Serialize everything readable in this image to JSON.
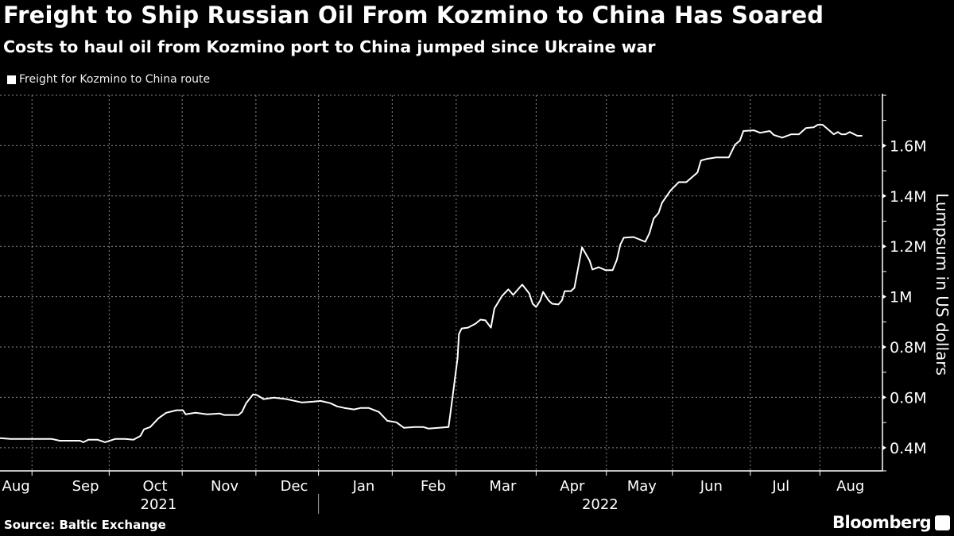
{
  "header": {
    "title": "Freight to Ship Russian Oil From Kozmino to China Has Soared",
    "subtitle": "Costs to haul oil from Kozmino port to China jumped since Ukraine war"
  },
  "footer": {
    "source": "Source: Baltic Exchange",
    "brand": "Bloomberg"
  },
  "colors": {
    "background": "#000000",
    "line": "#ffffff",
    "grid": "#8a8a8a"
  },
  "chart_data": {
    "type": "line",
    "title": "Freight to Ship Russian Oil From Kozmino to China Has Soared",
    "ylabel": "Lumpsum in US dollars",
    "xlabel": "",
    "x_unit": "months since Aug 1, 2021",
    "xlim": [
      0.27,
      12.96
    ],
    "ylim": [
      0.308,
      1.8
    ],
    "y_unit": "million USD",
    "yticks": [
      0.4,
      0.6,
      0.8,
      1.0,
      1.2,
      1.4,
      1.6
    ],
    "ytick_labels": [
      "0.4M",
      "0.6M",
      "0.8M",
      "1M",
      "1.2M",
      "1.4M",
      "1.6M"
    ],
    "yminor": [
      0.5,
      0.7,
      0.9,
      1.1,
      1.3,
      1.5,
      1.7,
      1.8
    ],
    "xgrid": [
      0.73,
      1.84,
      2.89,
      3.95,
      4.85,
      5.91,
      6.83,
      7.98,
      8.99,
      9.94,
      11.06,
      12.06
    ],
    "month_ticks": [
      {
        "x": 0.5,
        "label": "Aug"
      },
      {
        "x": 1.5,
        "label": "Sep"
      },
      {
        "x": 2.5,
        "label": "Oct"
      },
      {
        "x": 3.5,
        "label": "Nov"
      },
      {
        "x": 4.5,
        "label": "Dec"
      },
      {
        "x": 5.5,
        "label": "Jan"
      },
      {
        "x": 6.5,
        "label": "Feb"
      },
      {
        "x": 7.5,
        "label": "Mar"
      },
      {
        "x": 8.5,
        "label": "Apr"
      },
      {
        "x": 9.5,
        "label": "May"
      },
      {
        "x": 10.5,
        "label": "Jun"
      },
      {
        "x": 11.5,
        "label": "Jul"
      },
      {
        "x": 12.5,
        "label": "Aug"
      }
    ],
    "year_labels": [
      {
        "x": 2.55,
        "label": "2021"
      },
      {
        "x": 8.9,
        "label": "2022"
      }
    ],
    "year_divider": 4.85,
    "grid": true,
    "legend_position": "top-left",
    "series": [
      {
        "name": "Freight for Kozmino to China route",
        "x": [
          0.27,
          0.42,
          1.01,
          1.13,
          1.42,
          1.47,
          1.54,
          1.67,
          1.78,
          1.93,
          2.07,
          2.19,
          2.29,
          2.34,
          2.43,
          2.55,
          2.66,
          2.81,
          2.9,
          2.94,
          3.08,
          3.25,
          3.43,
          3.49,
          3.7,
          3.75,
          3.81,
          3.91,
          3.97,
          4.06,
          4.21,
          4.39,
          4.61,
          4.78,
          4.88,
          5.02,
          5.12,
          5.22,
          5.36,
          5.46,
          5.57,
          5.72,
          5.84,
          5.97,
          6.08,
          6.23,
          6.36,
          6.43,
          6.72,
          6.75,
          6.85,
          6.87,
          6.91,
          7.0,
          7.11,
          7.18,
          7.25,
          7.33,
          7.38,
          7.49,
          7.58,
          7.65,
          7.78,
          7.88,
          7.93,
          7.98,
          8.04,
          8.08,
          8.16,
          8.21,
          8.3,
          8.35,
          8.39,
          8.48,
          8.53,
          8.64,
          8.75,
          8.79,
          8.88,
          8.98,
          9.08,
          9.14,
          9.19,
          9.24,
          9.38,
          9.55,
          9.61,
          9.67,
          9.74,
          9.79,
          9.91,
          10.03,
          10.14,
          10.3,
          10.35,
          10.43,
          10.57,
          10.75,
          10.84,
          10.91,
          10.96,
          11.11,
          11.2,
          11.34,
          11.4,
          11.52,
          11.65,
          11.76,
          11.86,
          11.97,
          12.03,
          12.1,
          12.26,
          12.32,
          12.37,
          12.43,
          12.49,
          12.6,
          12.67
        ],
        "values": [
          0.438,
          0.435,
          0.435,
          0.428,
          0.428,
          0.422,
          0.432,
          0.432,
          0.422,
          0.435,
          0.435,
          0.432,
          0.447,
          0.473,
          0.482,
          0.517,
          0.539,
          0.549,
          0.549,
          0.533,
          0.539,
          0.533,
          0.536,
          0.53,
          0.53,
          0.542,
          0.577,
          0.612,
          0.609,
          0.593,
          0.599,
          0.593,
          0.58,
          0.583,
          0.586,
          0.577,
          0.564,
          0.558,
          0.552,
          0.558,
          0.558,
          0.542,
          0.507,
          0.501,
          0.479,
          0.482,
          0.482,
          0.476,
          0.482,
          0.542,
          0.757,
          0.852,
          0.874,
          0.877,
          0.893,
          0.909,
          0.906,
          0.877,
          0.953,
          1.003,
          1.029,
          1.007,
          1.048,
          1.013,
          0.972,
          0.959,
          0.985,
          1.019,
          0.985,
          0.972,
          0.969,
          0.985,
          1.022,
          1.022,
          1.035,
          1.196,
          1.143,
          1.108,
          1.117,
          1.105,
          1.105,
          1.146,
          1.206,
          1.234,
          1.237,
          1.218,
          1.253,
          1.31,
          1.332,
          1.373,
          1.421,
          1.455,
          1.455,
          1.493,
          1.541,
          1.547,
          1.553,
          1.553,
          1.604,
          1.62,
          1.658,
          1.661,
          1.651,
          1.658,
          1.642,
          1.632,
          1.645,
          1.645,
          1.67,
          1.673,
          1.683,
          1.683,
          1.645,
          1.654,
          1.645,
          1.645,
          1.654,
          1.639,
          1.639
        ]
      }
    ]
  }
}
